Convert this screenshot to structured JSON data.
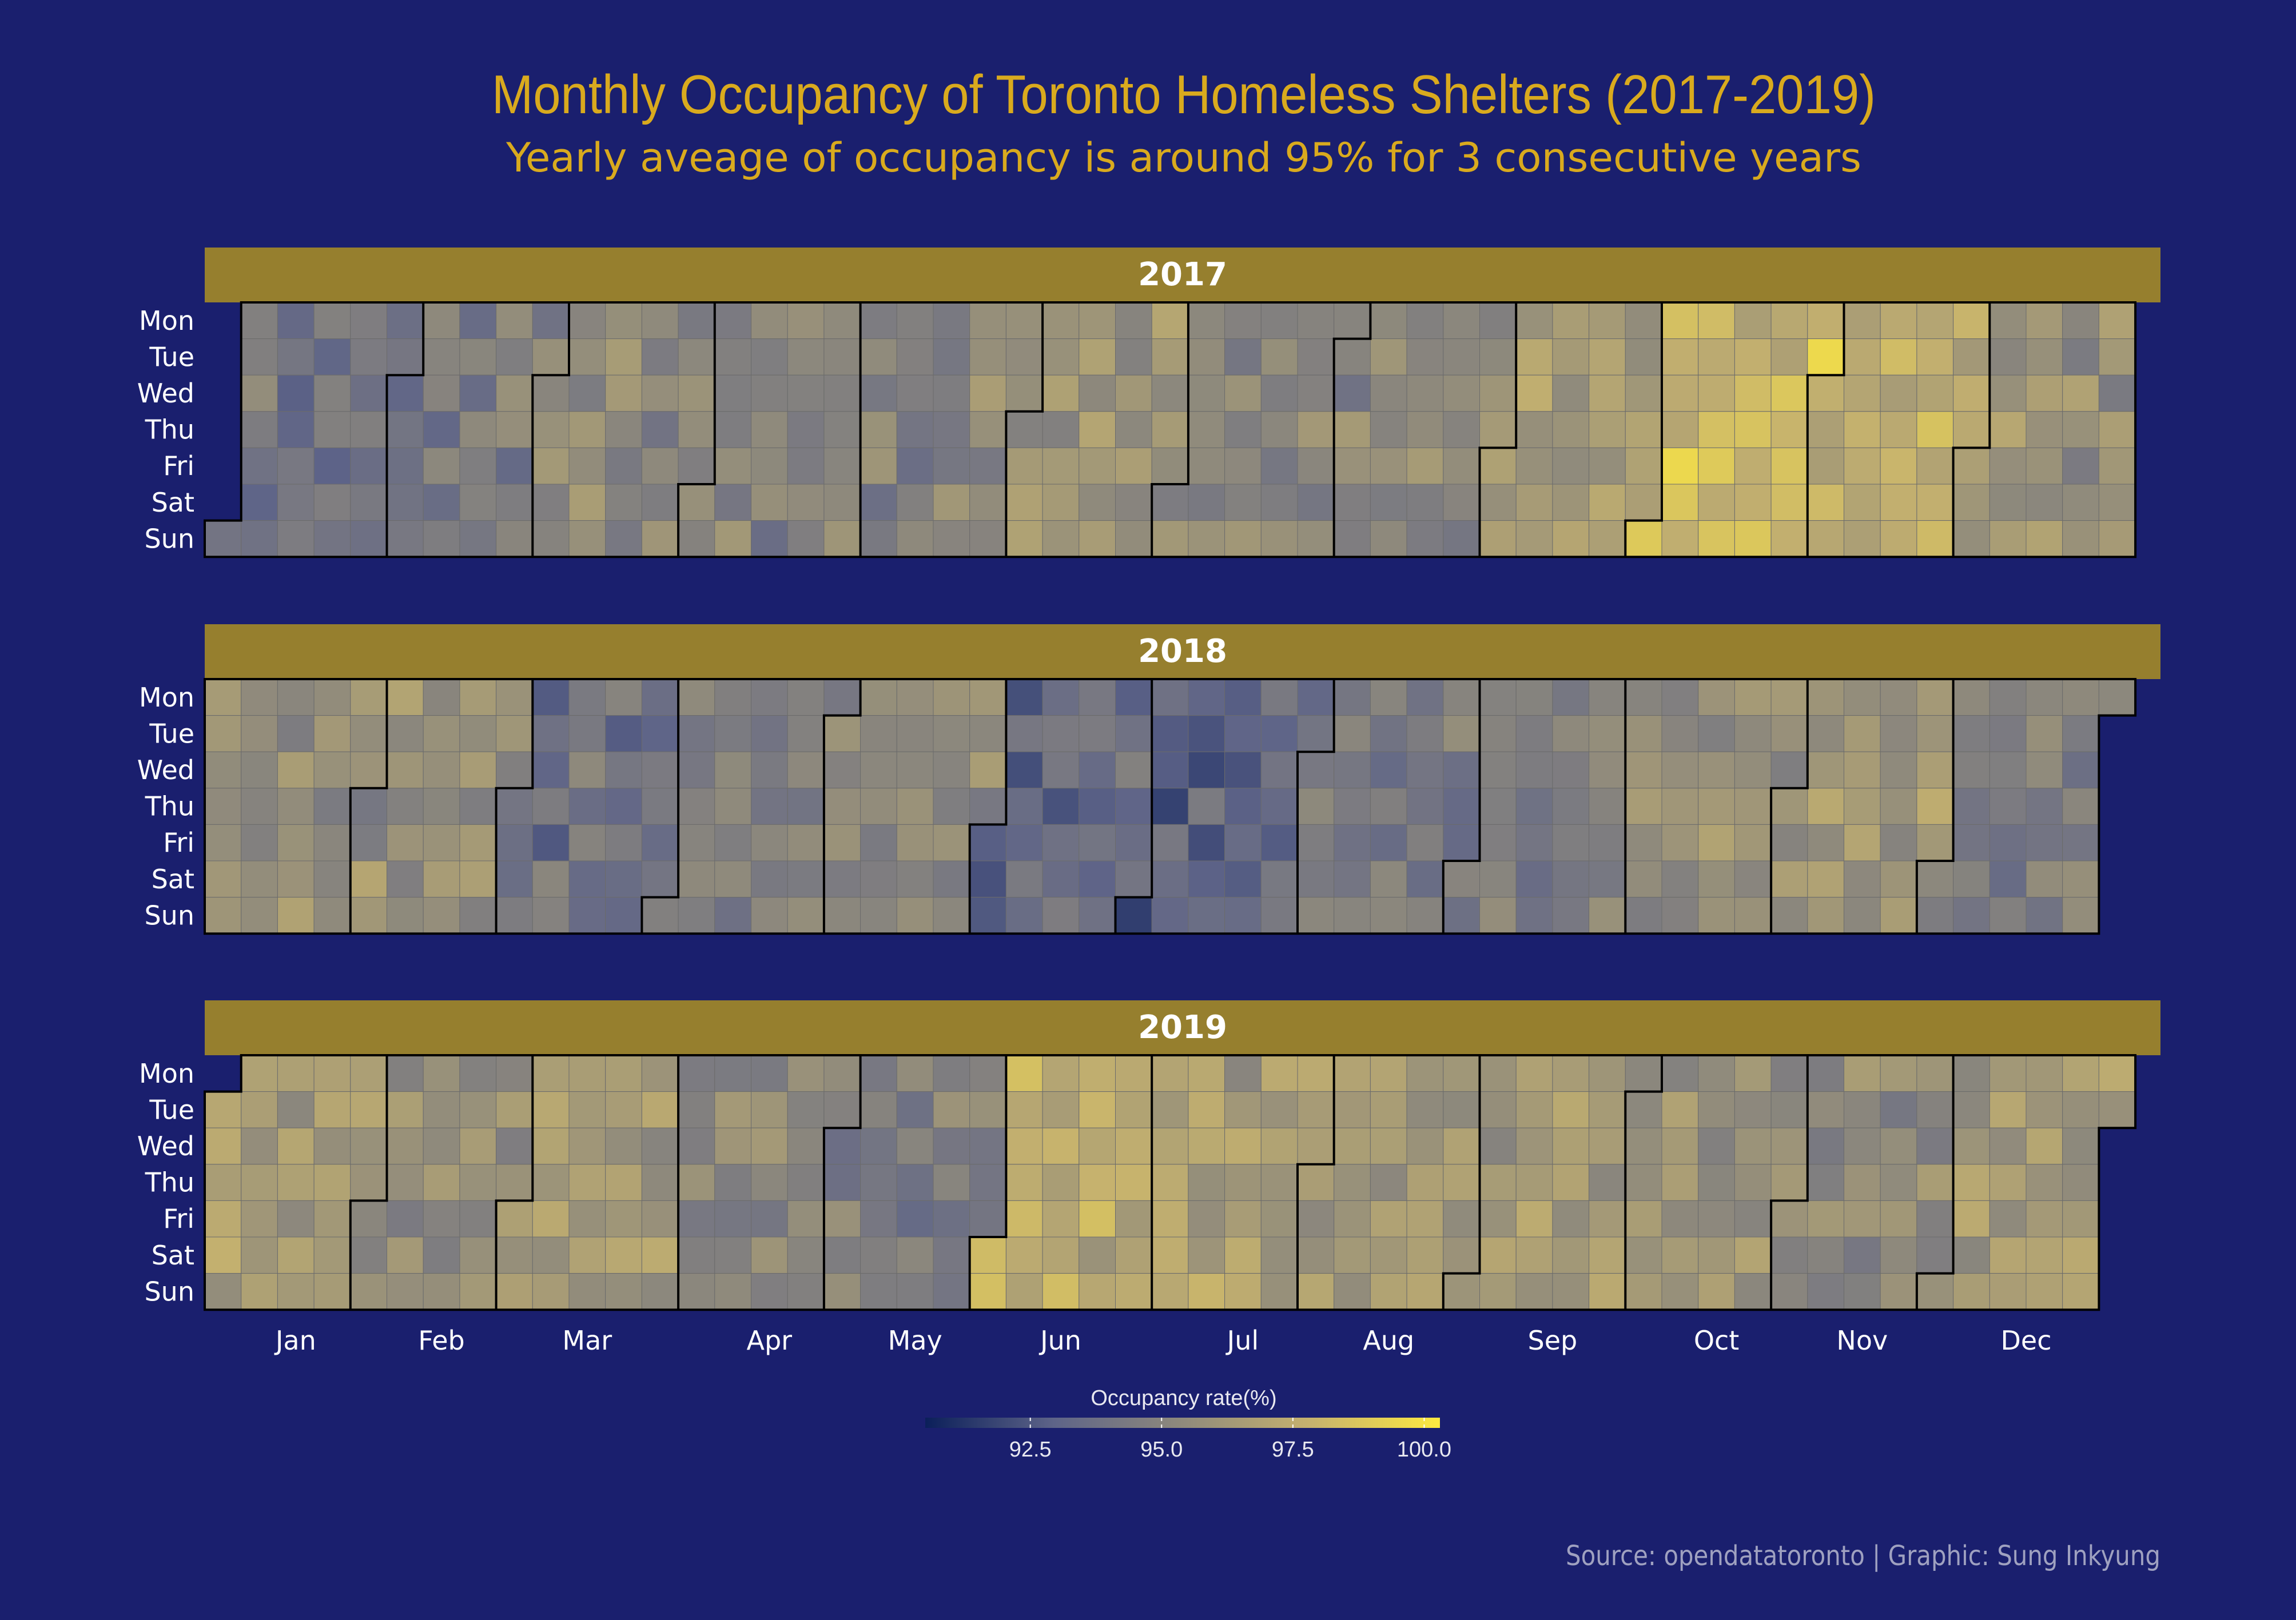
{
  "chart_data": {
    "type": "heatmap",
    "title": "Monthly Occupancy of Toronto Homeless Shelters (2017-2019)",
    "subtitle": "Yearly aveage of occupancy is around 95% for 3 consecutive years",
    "caption": "Source: opendatatoronto | Graphic: Sung Inkyung",
    "weekdays": [
      "Mon",
      "Tue",
      "Wed",
      "Thu",
      "Fri",
      "Sat",
      "Sun"
    ],
    "months": [
      "Jan",
      "Feb",
      "Mar",
      "Apr",
      "May",
      "Jun",
      "Jul",
      "Aug",
      "Sep",
      "Oct",
      "Nov",
      "Dec"
    ],
    "legend": {
      "title": "Occupancy rate(%)",
      "ticks": [
        92.5,
        95.0,
        97.5,
        100.0
      ],
      "tick_labels": [
        "92.5",
        "95.0",
        "97.5",
        "100.0"
      ],
      "range": [
        90.5,
        100.3
      ],
      "colors": [
        "#0b1f5a",
        "#5e6488",
        "#8f8a7c",
        "#c6b26e",
        "#fde940"
      ]
    },
    "panels": [
      {
        "year": "2017",
        "monthly_avg": [
          94.3,
          94.4,
          95.4,
          95.0,
          95.1,
          95.8,
          95.3,
          95.3,
          96.3,
          98.1,
          97.5,
          95.7
        ]
      },
      {
        "year": "2018",
        "monthly_avg": [
          95.6,
          95.6,
          94.0,
          94.7,
          95.1,
          93.4,
          93.0,
          94.3,
          94.8,
          95.7,
          96.1,
          94.8
        ]
      },
      {
        "year": "2019",
        "monthly_avg": [
          96.4,
          95.6,
          96.2,
          95.2,
          94.6,
          97.1,
          96.6,
          96.4,
          96.3,
          95.8,
          95.4,
          96.3
        ]
      }
    ]
  }
}
